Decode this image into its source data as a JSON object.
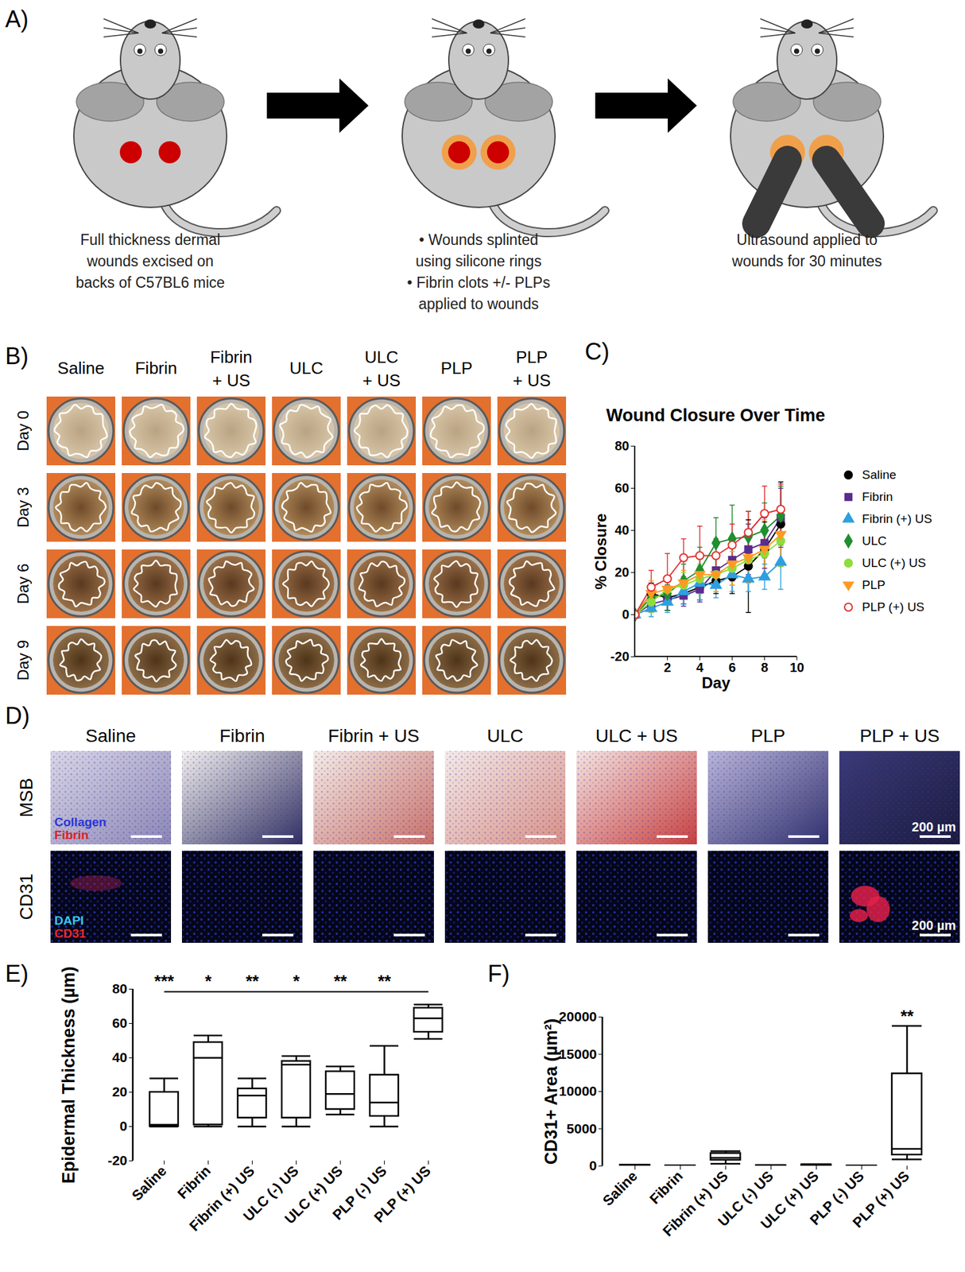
{
  "panels": {
    "A": {
      "label": "A)",
      "steps": [
        {
          "caption": [
            "Full thickness dermal",
            "wounds excised on",
            "backs of C57BL6 mice"
          ]
        },
        {
          "caption": [
            "• Wounds splinted",
            "using silicone rings",
            "• Fibrin clots +/- PLPs",
            "applied to wounds"
          ]
        },
        {
          "caption": [
            "Ultrasound applied to",
            "wounds for 30 minutes"
          ]
        }
      ]
    },
    "B": {
      "label": "B)",
      "columns": [
        [
          "Saline"
        ],
        [
          "Fibrin"
        ],
        [
          "Fibrin",
          "+ US"
        ],
        [
          "ULC"
        ],
        [
          "ULC",
          "+ US"
        ],
        [
          "PLP"
        ],
        [
          "PLP",
          "+ US"
        ]
      ],
      "rows": [
        "Day 0",
        "Day 3",
        "Day 6",
        "Day 9"
      ]
    },
    "D": {
      "label": "D)",
      "columns": [
        "Saline",
        "Fibrin",
        "Fibrin + US",
        "ULC",
        "ULC + US",
        "PLP",
        "PLP + US"
      ],
      "rows": [
        "MSB",
        "CD31"
      ],
      "stains": [
        [
          {
            "text": "Collagen",
            "color": "#2a35d8"
          },
          {
            "text": "Fibrin",
            "color": "#e02020"
          }
        ],
        [
          {
            "text": "DAPI",
            "color": "#35c8f0"
          },
          {
            "text": "CD31",
            "color": "#f02828"
          }
        ]
      ],
      "scale_bar": "200 µm"
    }
  },
  "chart_data": [
    {
      "panel_label": "C)",
      "type": "line",
      "title": "Wound Closure Over Time",
      "x_label": "Day",
      "y_label": "% Closure",
      "x": [
        0,
        1,
        2,
        3,
        4,
        5,
        6,
        7,
        8,
        9
      ],
      "xlim": [
        0,
        10
      ],
      "xticks": [
        2,
        4,
        6,
        8,
        10
      ],
      "ylim": [
        -20,
        80
      ],
      "yticks": [
        -20,
        0,
        20,
        40,
        60,
        80
      ],
      "legend": "right",
      "series": [
        {
          "name": "Saline",
          "color": "#000000",
          "marker": "circle",
          "values": [
            0,
            10,
            8,
            10,
            13,
            16,
            18,
            23,
            31,
            43
          ],
          "errors": [
            0,
            5,
            6,
            5,
            6,
            6,
            8,
            22,
            13,
            20
          ]
        },
        {
          "name": "Fibrin",
          "color": "#5b2c8f",
          "marker": "square",
          "values": [
            0,
            5,
            7,
            9,
            12,
            21,
            26,
            31,
            34,
            46
          ],
          "errors": [
            0,
            4,
            5,
            5,
            6,
            8,
            10,
            12,
            12,
            14
          ]
        },
        {
          "name": "Fibrin (+) US",
          "color": "#2e9fe0",
          "marker": "triangle",
          "values": [
            0,
            3,
            6,
            11,
            15,
            14,
            19,
            17,
            18,
            25
          ],
          "errors": [
            0,
            4,
            5,
            6,
            8,
            6,
            8,
            6,
            6,
            13
          ]
        },
        {
          "name": "ULC",
          "color": "#1f8f2f",
          "marker": "diamond",
          "values": [
            0,
            8,
            10,
            16,
            21,
            34,
            36,
            37,
            40,
            47
          ],
          "errors": [
            0,
            5,
            8,
            8,
            11,
            12,
            16,
            12,
            13,
            14
          ]
        },
        {
          "name": "ULC (+) US",
          "color": "#8fdc3c",
          "marker": "circle",
          "values": [
            0,
            6,
            12,
            14,
            17,
            19,
            22,
            26,
            29,
            35
          ],
          "errors": [
            0,
            5,
            6,
            6,
            7,
            8,
            8,
            10,
            12,
            12
          ]
        },
        {
          "name": "PLP",
          "color": "#ff9922",
          "marker": "triangle-down",
          "values": [
            0,
            10,
            12,
            15,
            19,
            19,
            24,
            27,
            31,
            38
          ],
          "errors": [
            0,
            6,
            6,
            6,
            8,
            8,
            10,
            12,
            14,
            12
          ]
        },
        {
          "name": "PLP (+) US",
          "color": "#e03030",
          "marker": "circle-open",
          "values": [
            0,
            13,
            17,
            27,
            28,
            28,
            33,
            39,
            48,
            50
          ],
          "errors": [
            0,
            8,
            12,
            9,
            14,
            8,
            10,
            10,
            13,
            12
          ]
        }
      ]
    },
    {
      "panel_label": "E)",
      "type": "box",
      "y_label": "Epidermal Thickness (µm)",
      "color": "#000000",
      "categories": [
        "Saline",
        "Fibrin",
        "Fibrin (+) US",
        "ULC (-) US",
        "ULC (+) US",
        "PLP (-) US",
        "PLP (+) US"
      ],
      "boxes": [
        {
          "min": 0,
          "q1": 0,
          "median": 1,
          "q3": 20,
          "max": 28
        },
        {
          "min": 0,
          "q1": 1,
          "median": 40,
          "q3": 49,
          "max": 53
        },
        {
          "min": 0,
          "q1": 5,
          "median": 18,
          "q3": 22,
          "max": 28
        },
        {
          "min": 0,
          "q1": 5,
          "median": 36,
          "q3": 38,
          "max": 41
        },
        {
          "min": 7,
          "q1": 10,
          "median": 19,
          "q3": 32,
          "max": 35
        },
        {
          "min": 0,
          "q1": 6,
          "median": 14,
          "q3": 30,
          "max": 47
        },
        {
          "min": 51,
          "q1": 55,
          "median": 63,
          "q3": 69,
          "max": 71
        }
      ],
      "ylim": [
        -20,
        80
      ],
      "yticks": [
        -20,
        0,
        20,
        40,
        60,
        80
      ],
      "annotations": [
        {
          "category": "Saline",
          "label": "***"
        },
        {
          "category": "Fibrin",
          "label": "*"
        },
        {
          "category": "Fibrin (+) US",
          "label": "**"
        },
        {
          "category": "ULC (-) US",
          "label": "*"
        },
        {
          "category": "ULC (+) US",
          "label": "**"
        },
        {
          "category": "PLP (-) US",
          "label": "**"
        }
      ],
      "bracket_to": "PLP (+) US"
    },
    {
      "panel_label": "F)",
      "type": "box",
      "y_label": "CD31+ Area (µm²)",
      "color": "#000000",
      "categories": [
        "Saline",
        "Fibrin",
        "Fibrin (+) US",
        "ULC (-) US",
        "ULC (+) US",
        "PLP (-) US",
        "PLP (+) US"
      ],
      "boxes": [
        {
          "min": 0,
          "q1": 50,
          "median": 100,
          "q3": 150,
          "max": 200
        },
        {
          "min": 0,
          "q1": 20,
          "median": 40,
          "q3": 60,
          "max": 80
        },
        {
          "min": 300,
          "q1": 800,
          "median": 1100,
          "q3": 1700,
          "max": 2000
        },
        {
          "min": 0,
          "q1": 30,
          "median": 60,
          "q3": 90,
          "max": 120
        },
        {
          "min": 0,
          "q1": 60,
          "median": 120,
          "q3": 180,
          "max": 250
        },
        {
          "min": 0,
          "q1": 10,
          "median": 20,
          "q3": 30,
          "max": 50
        },
        {
          "min": 900,
          "q1": 1500,
          "median": 2300,
          "q3": 12400,
          "max": 18800
        }
      ],
      "ylim": [
        0,
        20000
      ],
      "yticks": [
        0,
        5000,
        10000,
        15000,
        20000
      ],
      "annotations": [
        {
          "category": "PLP (+) US",
          "label": "**"
        }
      ]
    }
  ]
}
